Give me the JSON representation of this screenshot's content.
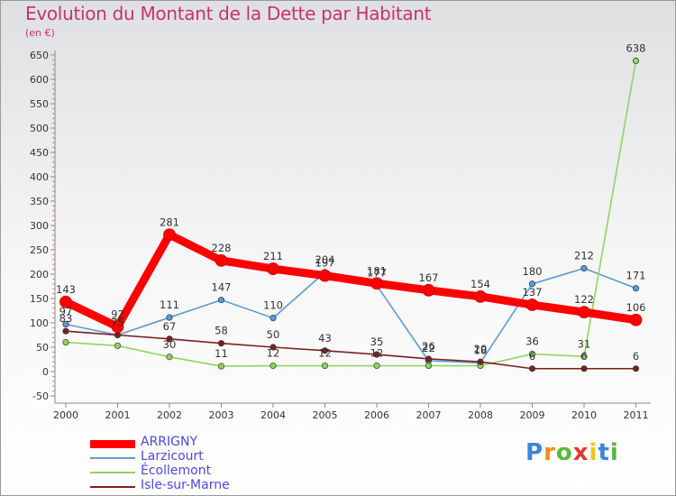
{
  "header": {
    "title": "Evolution du Montant de la Dette par Habitant",
    "unit": "(en €)"
  },
  "chart_data": {
    "type": "line",
    "x": [
      "2000",
      "2001",
      "2002",
      "2003",
      "2004",
      "2005",
      "2006",
      "2007",
      "2008",
      "2009",
      "2010",
      "2011"
    ],
    "ylim": [
      -50,
      650
    ],
    "yticks": [
      -50,
      0,
      50,
      100,
      150,
      200,
      250,
      300,
      350,
      400,
      450,
      500,
      550,
      600,
      650
    ],
    "grid": false,
    "legend_placement": "bottom-left",
    "series": [
      {
        "name": "ARRIGNY",
        "color": "#ff0000",
        "values": [
          143,
          92,
          281,
          228,
          211,
          197,
          181,
          167,
          154,
          137,
          122,
          106
        ],
        "labels": [
          "143",
          "92",
          "281",
          "228",
          "211",
          "197",
          "181",
          "167",
          "154",
          "137",
          "122",
          "106"
        ]
      },
      {
        "name": "Larzicourt",
        "color": "#5b9bd5",
        "values": [
          97,
          75,
          111,
          147,
          110,
          204,
          177,
          22,
          18,
          180,
          212,
          171
        ],
        "labels": [
          "97",
          "75",
          "111",
          "147",
          "110",
          "204",
          "177",
          "22",
          "18",
          "180",
          "212",
          "171"
        ]
      },
      {
        "name": "Écollemont",
        "color": "#8fd460",
        "values": [
          60,
          53,
          30,
          11,
          12,
          12,
          12,
          12,
          12,
          36,
          31,
          638
        ],
        "labels": [
          "",
          "",
          "30",
          "11",
          "12",
          "12",
          "12",
          "",
          "",
          "36",
          "31",
          "638"
        ]
      },
      {
        "name": "Isle-sur-Marne",
        "color": "#7b2020",
        "values": [
          83,
          75,
          67,
          58,
          50,
          43,
          35,
          26,
          20,
          6,
          6,
          6
        ],
        "labels": [
          "83",
          "75",
          "67",
          "58",
          "50",
          "43",
          "35",
          "26",
          "20",
          "6",
          "6",
          "6"
        ]
      }
    ]
  },
  "logo": {
    "letters": [
      "P",
      "r",
      "o",
      "x",
      "i",
      "t",
      "i"
    ],
    "colors": [
      "#3a86d8",
      "#f08c1e",
      "#5bb83a",
      "#e03a3a",
      "#f2c31b",
      "#3a86d8",
      "#5bb83a"
    ]
  }
}
